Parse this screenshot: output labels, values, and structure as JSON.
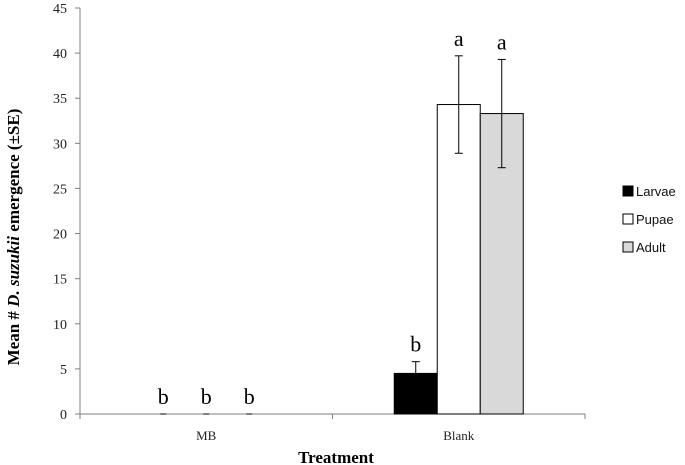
{
  "chart_data": {
    "type": "bar",
    "categories": [
      "MB",
      "Blank"
    ],
    "series": [
      {
        "name": "Larvae",
        "color": "#000000",
        "values": [
          0,
          4.5
        ],
        "se": [
          0,
          1.3
        ],
        "sig": [
          "b",
          "b"
        ]
      },
      {
        "name": "Pupae",
        "color": "#ffffff",
        "values": [
          0,
          34.3
        ],
        "se": [
          0,
          5.4
        ],
        "sig": [
          "b",
          "a"
        ]
      },
      {
        "name": "Adult",
        "color": "#d9d9d9",
        "values": [
          0,
          33.3
        ],
        "se": [
          0,
          6.0
        ],
        "sig": [
          "b",
          "a"
        ]
      }
    ],
    "xlabel": "Treatment",
    "ylabel_parts": [
      "Mean # ",
      "D. suzukii",
      " emergence (±SE)"
    ],
    "ylim": [
      0,
      45
    ],
    "yticks": [
      0,
      5,
      10,
      15,
      20,
      25,
      30,
      35,
      40,
      45
    ],
    "grid": false,
    "legend_position": "right"
  }
}
